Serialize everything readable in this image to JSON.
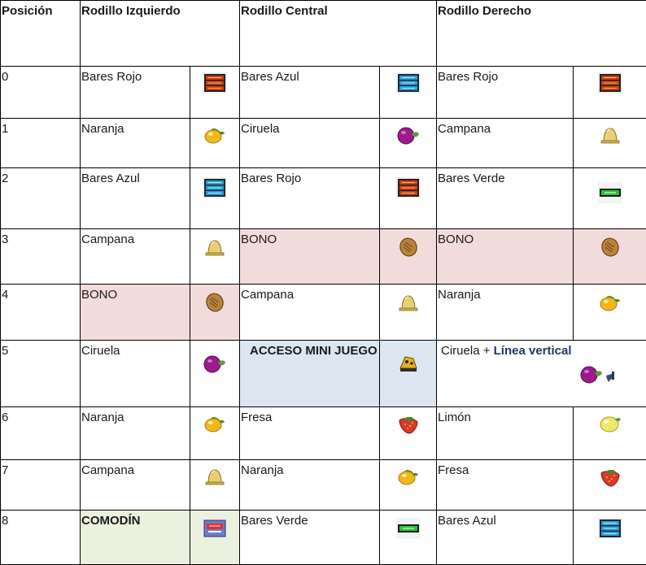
{
  "headers": {
    "pos": "Posición",
    "left": "Rodillo Izquierdo",
    "center": "Rodillo Central",
    "right": "Rodillo Derecho"
  },
  "rows": [
    {
      "pos": "0",
      "left": "Bares Rojo",
      "center": "Bares Azul",
      "right": "Bares Rojo"
    },
    {
      "pos": "1",
      "left": "Naranja",
      "center": "Ciruela",
      "right": "Campana"
    },
    {
      "pos": "2",
      "left": "Bares Azul",
      "center": "Bares Rojo",
      "right": "Bares Verde"
    },
    {
      "pos": "3",
      "left": "Campana",
      "center": "BONO",
      "right": "BONO"
    },
    {
      "pos": "4",
      "left": "BONO",
      "center": "Campana",
      "right": "Naranja"
    },
    {
      "pos": "5",
      "left": "Ciruela",
      "center": "ACCESO MINI JUEGO",
      "right": "Ciruela +",
      "right_extra": "Línea vertical"
    },
    {
      "pos": "6",
      "left": "Naranja",
      "center": "Fresa",
      "right": "Limón"
    },
    {
      "pos": "7",
      "left": "Campana",
      "center": "Naranja",
      "right": "Fresa"
    },
    {
      "pos": "8",
      "left": "COMODÍN",
      "center": "Bares Verde",
      "right": "Bares Azul"
    }
  ],
  "icons": {
    "row0": [
      "bar-red-icon",
      "bar-blue-icon",
      "bar-red-icon"
    ],
    "row1": [
      "orange-icon",
      "plum-icon",
      "bell-icon"
    ],
    "row2": [
      "bar-blue-icon",
      "bar-red-icon",
      "bar-green-icon"
    ],
    "row3": [
      "bell-icon",
      "bonus-nut-icon",
      "bonus-nut-icon"
    ],
    "row4": [
      "bonus-nut-icon",
      "bell-icon",
      "orange-icon"
    ],
    "row5": [
      "plum-icon",
      "mini-game-icon",
      "plum-vertical-line-icon"
    ],
    "row6": [
      "orange-icon",
      "strawberry-icon",
      "lemon-icon"
    ],
    "row7": [
      "bell-icon",
      "orange-icon",
      "strawberry-icon"
    ],
    "row8": [
      "wild-icon",
      "bar-green-icon",
      "bar-blue-icon"
    ]
  },
  "colors": {
    "bono_bg": "#f2dcdb",
    "mini_game_bg": "#dce6f1",
    "wild_bg": "#ebf1de",
    "highlight_text": "#1f3864"
  }
}
